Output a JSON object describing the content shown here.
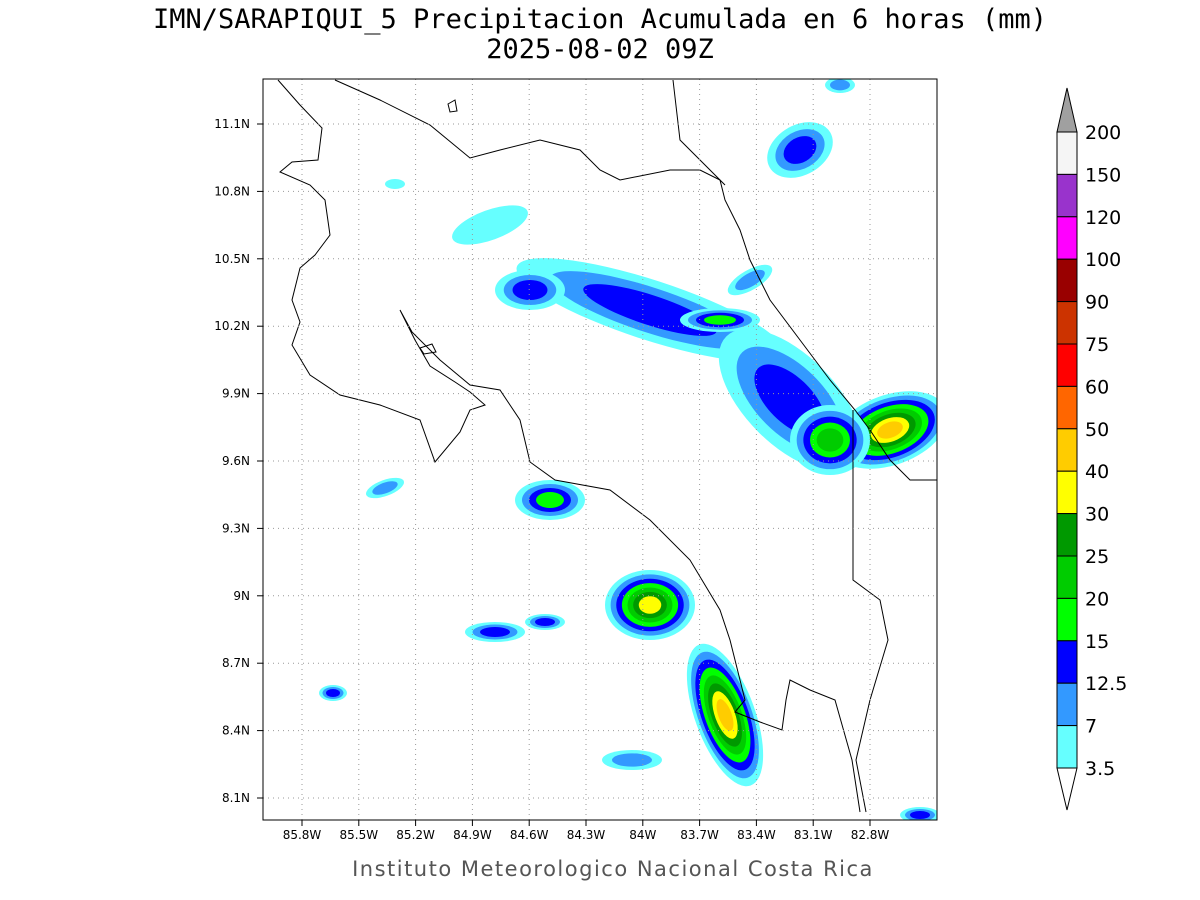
{
  "title": "IMN/SARAPIQUI_5 Precipitacion Acumulada en 6 horas (mm)",
  "subtitle": "2025-08-02 09Z",
  "footer": "Instituto Meteorologico Nacional Costa Rica",
  "lon_labels": [
    "85.8W",
    "85.5W",
    "85.2W",
    "84.9W",
    "84.6W",
    "84.3W",
    "84W",
    "83.7W",
    "83.4W",
    "83.1W",
    "82.8W"
  ],
  "lat_labels": [
    "11.1N",
    "10.8N",
    "10.5N",
    "10.2N",
    "9.9N",
    "9.6N",
    "9.3N",
    "9N",
    "8.7N",
    "8.4N",
    "8.1N"
  ],
  "colorbar": {
    "levels": [
      "200",
      "150",
      "120",
      "100",
      "90",
      "75",
      "60",
      "50",
      "40",
      "30",
      "25",
      "20",
      "15",
      "12.5",
      "7",
      "3.5"
    ],
    "colors": [
      "#a0a0a0",
      "#f5f5f5",
      "#9933cc",
      "#ff00ff",
      "#990000",
      "#cc3300",
      "#ff0000",
      "#ff6600",
      "#ffcc00",
      "#ffff00",
      "#009900",
      "#00cc00",
      "#00ff00",
      "#0000ff",
      "#3399ff",
      "#66ffff",
      "#ffffff"
    ]
  }
}
